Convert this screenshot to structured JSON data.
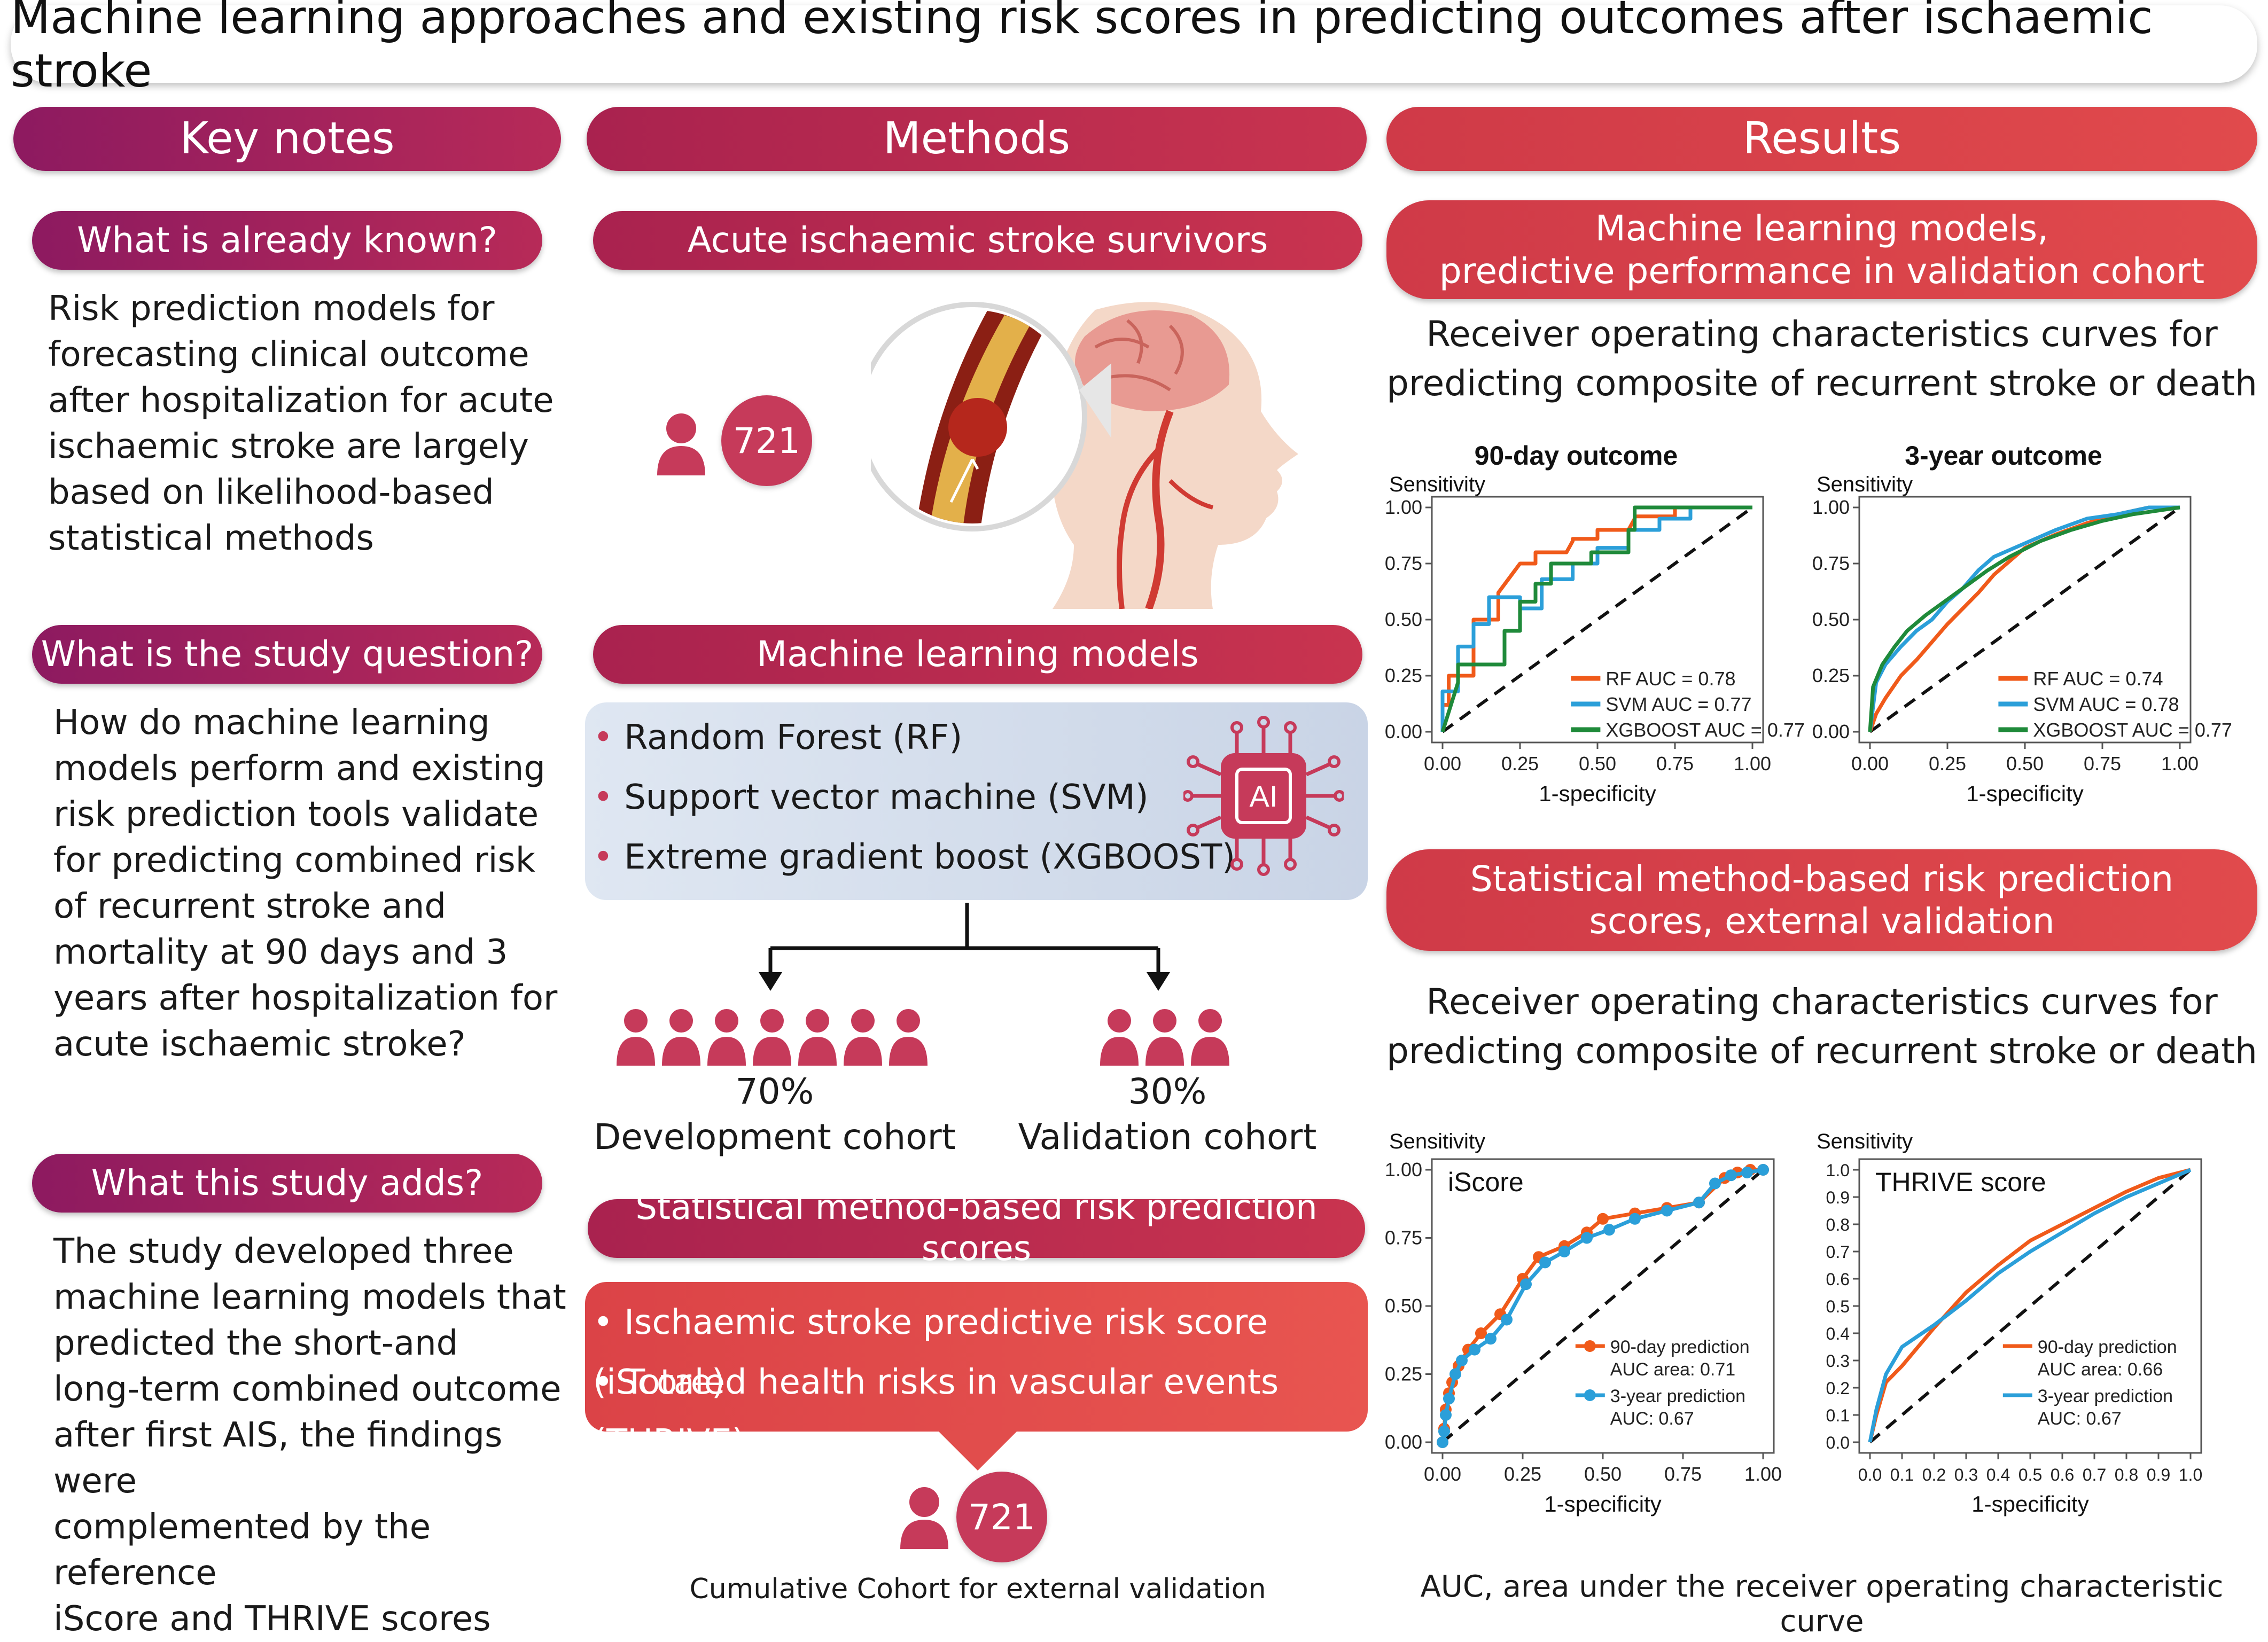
{
  "title": "Machine learning approaches and existing risk scores in predicting outcomes after ischaemic stroke",
  "columns": {
    "key_notes": "Key notes",
    "methods": "Methods",
    "results": "Results"
  },
  "key_notes": {
    "known_q": "What is already known?",
    "known_text": [
      "Risk prediction models for",
      "forecasting clinical outcome",
      "after hospitalization for acute",
      "ischaemic stroke are largely",
      "based on likelihood-based",
      "statistical methods"
    ],
    "question_q": "What is the study question?",
    "question_text": [
      "How do machine learning",
      "models perform and existing",
      "risk prediction tools validate",
      "for predicting combined risk",
      "of recurrent stroke and",
      "mortality at 90 days and 3",
      "years after hospitalization for",
      "acute ischaemic stroke?"
    ],
    "adds_q": "What this study adds?",
    "adds_text": [
      "The study developed three",
      "machine learning models that",
      "predicted the short-and",
      "long-term combined outcome",
      "after first AIS, the findings were",
      "complemented by the reference",
      "iScore and THRIVE scores"
    ]
  },
  "methods": {
    "survivors_label": "Acute ischaemic stroke survivors",
    "n_survivors": "721",
    "ml_label": "Machine learning models",
    "ml_items": [
      "Random Forest (RF)",
      "Support vector machine (SVM)",
      "Extreme gradient boost (XGBOOST)"
    ],
    "ai_chip": "AI",
    "dev_pct": "70%",
    "dev_label": "Development cohort",
    "val_pct": "30%",
    "val_label": "Validation cohort",
    "stat_label": "Statistical method-based risk prediction scores",
    "stat_items": [
      "Ischaemic stroke predictive risk score (iScore)",
      "Totaled health risks in vascular events (THRIVE)"
    ],
    "n_external": "721",
    "external_label": "Cumulative Cohort for external validation"
  },
  "results": {
    "ml_header": [
      "Machine learning models,",
      "predictive performance in validation cohort"
    ],
    "roc_caption_1": [
      "Receiver operating characteristics curves for",
      "predicting composite of recurrent stroke or death"
    ],
    "stat_header": [
      "Statistical method-based risk prediction",
      "scores, external validation"
    ],
    "roc_caption_2": [
      "Receiver operating characteristics curves for",
      "predicting composite of recurrent stroke or death"
    ],
    "footnote": "AUC, area under the receiver operating characteristic curve"
  },
  "colors": {
    "rf": "#f05a1a",
    "svm": "#2b9fd9",
    "xgb": "#1f8a3a",
    "orange": "#f05a1a",
    "blue": "#2b9fd9",
    "brand": "#c63a5a"
  },
  "chart_data": [
    {
      "type": "line",
      "title": "90-day outcome",
      "xlabel": "1-specificity",
      "ylabel": "Sensitivity",
      "xticks": [
        "0.00",
        "0.25",
        "0.50",
        "0.75",
        "1.00"
      ],
      "yticks": [
        "0.00",
        "0.25",
        "0.50",
        "0.75",
        "1.00"
      ],
      "xlim": [
        0,
        1
      ],
      "ylim": [
        0,
        1
      ],
      "legend_position": "bottom-right",
      "series": [
        {
          "name": "RF AUC = 0.78",
          "color": "#f05a1a",
          "x": [
            0,
            0,
            0.02,
            0.02,
            0.1,
            0.1,
            0.18,
            0.18,
            0.25,
            0.3,
            0.3,
            0.4,
            0.42,
            0.42,
            0.5,
            0.5,
            0.6,
            0.62,
            0.62,
            0.75,
            0.75,
            0.88,
            1.0
          ],
          "y": [
            0,
            0.12,
            0.12,
            0.25,
            0.25,
            0.5,
            0.5,
            0.62,
            0.75,
            0.75,
            0.8,
            0.8,
            0.85,
            0.86,
            0.86,
            0.9,
            0.9,
            0.95,
            0.96,
            0.96,
            1.0,
            1.0,
            1.0
          ]
        },
        {
          "name": "SVM AUC = 0.77",
          "color": "#2b9fd9",
          "x": [
            0,
            0,
            0.05,
            0.05,
            0.1,
            0.1,
            0.15,
            0.15,
            0.25,
            0.25,
            0.32,
            0.32,
            0.42,
            0.42,
            0.5,
            0.5,
            0.6,
            0.6,
            0.7,
            0.7,
            0.8,
            0.8,
            1.0
          ],
          "y": [
            0,
            0.18,
            0.18,
            0.38,
            0.38,
            0.48,
            0.48,
            0.6,
            0.6,
            0.55,
            0.55,
            0.68,
            0.68,
            0.75,
            0.75,
            0.82,
            0.82,
            0.9,
            0.9,
            0.95,
            0.95,
            1.0,
            1.0
          ]
        },
        {
          "name": "XGBOOST AUC = 0.77",
          "color": "#1f8a3a",
          "x": [
            0,
            0.05,
            0.05,
            0.2,
            0.2,
            0.25,
            0.25,
            0.3,
            0.3,
            0.35,
            0.35,
            0.48,
            0.48,
            0.6,
            0.6,
            0.62,
            0.62,
            0.82,
            0.82,
            1.0
          ],
          "y": [
            0,
            0.22,
            0.3,
            0.3,
            0.45,
            0.45,
            0.58,
            0.58,
            0.66,
            0.66,
            0.75,
            0.75,
            0.8,
            0.8,
            0.9,
            0.9,
            1.0,
            1.0,
            1.0,
            1.0
          ]
        }
      ]
    },
    {
      "type": "line",
      "title": "3-year outcome",
      "xlabel": "1-specificity",
      "ylabel": "Sensitivity",
      "xticks": [
        "0.00",
        "0.25",
        "0.50",
        "0.75",
        "1.00"
      ],
      "yticks": [
        "0.00",
        "0.25",
        "0.50",
        "0.75",
        "1.00"
      ],
      "xlim": [
        0,
        1
      ],
      "ylim": [
        0,
        1
      ],
      "legend_position": "bottom-right",
      "series": [
        {
          "name": "RF AUC = 0.74",
          "color": "#f05a1a",
          "x": [
            0,
            0.02,
            0.05,
            0.1,
            0.15,
            0.2,
            0.25,
            0.3,
            0.35,
            0.4,
            0.45,
            0.5,
            0.6,
            0.7,
            0.8,
            0.9,
            1.0
          ],
          "y": [
            0,
            0.08,
            0.15,
            0.25,
            0.32,
            0.4,
            0.48,
            0.55,
            0.62,
            0.7,
            0.76,
            0.82,
            0.88,
            0.93,
            0.97,
            1.0,
            1.0
          ]
        },
        {
          "name": "SVM AUC = 0.78",
          "color": "#2b9fd9",
          "x": [
            0,
            0.02,
            0.05,
            0.1,
            0.15,
            0.2,
            0.25,
            0.3,
            0.35,
            0.4,
            0.5,
            0.6,
            0.7,
            0.8,
            0.9,
            1.0
          ],
          "y": [
            0,
            0.22,
            0.3,
            0.38,
            0.45,
            0.5,
            0.58,
            0.64,
            0.72,
            0.78,
            0.84,
            0.9,
            0.95,
            0.97,
            1.0,
            1.0
          ]
        },
        {
          "name": "XGBOOST AUC = 0.77",
          "color": "#1f8a3a",
          "x": [
            0,
            0.01,
            0.04,
            0.08,
            0.12,
            0.18,
            0.24,
            0.3,
            0.38,
            0.45,
            0.55,
            0.65,
            0.75,
            0.85,
            0.95,
            1.0
          ],
          "y": [
            0,
            0.2,
            0.3,
            0.38,
            0.45,
            0.52,
            0.58,
            0.64,
            0.72,
            0.78,
            0.85,
            0.9,
            0.94,
            0.97,
            0.99,
            1.0
          ]
        }
      ]
    },
    {
      "type": "line",
      "title": "iScore",
      "xlabel": "1-specificity",
      "ylabel": "Sensitivity",
      "xticks": [
        "0.00",
        "0.25",
        "0.50",
        "0.75",
        "1.00"
      ],
      "yticks": [
        "0.00",
        "0.25",
        "0.50",
        "0.75",
        "1.00"
      ],
      "xlim": [
        0,
        1
      ],
      "ylim": [
        0,
        1
      ],
      "legend_position": "bottom-right",
      "series": [
        {
          "name": "90-day prediction",
          "sublabel": "AUC area: 0.71",
          "color": "#f05a1a",
          "x": [
            0,
            0.005,
            0.01,
            0.02,
            0.03,
            0.05,
            0.08,
            0.12,
            0.18,
            0.25,
            0.3,
            0.38,
            0.45,
            0.5,
            0.6,
            0.7,
            0.8,
            0.88,
            0.92,
            0.96,
            1.0
          ],
          "y": [
            0,
            0.05,
            0.12,
            0.18,
            0.22,
            0.28,
            0.34,
            0.4,
            0.47,
            0.6,
            0.68,
            0.72,
            0.77,
            0.82,
            0.84,
            0.86,
            0.88,
            0.97,
            0.99,
            1.0,
            1.0
          ]
        },
        {
          "name": "3-year prediction",
          "sublabel": "AUC: 0.67",
          "color": "#2b9fd9",
          "x": [
            0,
            0.005,
            0.01,
            0.02,
            0.04,
            0.06,
            0.1,
            0.15,
            0.2,
            0.26,
            0.32,
            0.38,
            0.45,
            0.52,
            0.6,
            0.7,
            0.8,
            0.85,
            0.9,
            0.95,
            1.0
          ],
          "y": [
            0,
            0.04,
            0.1,
            0.16,
            0.25,
            0.3,
            0.34,
            0.38,
            0.45,
            0.58,
            0.66,
            0.7,
            0.75,
            0.78,
            0.82,
            0.85,
            0.88,
            0.95,
            0.98,
            0.99,
            1.0
          ]
        }
      ]
    },
    {
      "type": "line",
      "title": "THRIVE score",
      "xlabel": "1-specificity",
      "ylabel": "Sensitivity",
      "xticks": [
        "0.0",
        "0.1",
        "0.2",
        "0.3",
        "0.4",
        "0.5",
        "0.6",
        "0.7",
        "0.8",
        "0.9",
        "1.0"
      ],
      "yticks": [
        "0.0",
        "0.1",
        "0.2",
        "0.3",
        "0.4",
        "0.5",
        "0.6",
        "0.7",
        "0.8",
        "0.9",
        "1.0"
      ],
      "xlim": [
        0,
        1
      ],
      "ylim": [
        0,
        1
      ],
      "legend_position": "bottom-right",
      "series": [
        {
          "name": "90-day prediction",
          "sublabel": "AUC area: 0.66",
          "color": "#f05a1a",
          "x": [
            0,
            0.02,
            0.05,
            0.1,
            0.2,
            0.3,
            0.4,
            0.5,
            0.6,
            0.7,
            0.8,
            0.9,
            1.0
          ],
          "y": [
            0,
            0.1,
            0.22,
            0.28,
            0.42,
            0.55,
            0.65,
            0.74,
            0.8,
            0.86,
            0.92,
            0.97,
            1.0
          ]
        },
        {
          "name": "3-year prediction",
          "sublabel": "AUC: 0.67",
          "color": "#2b9fd9",
          "x": [
            0,
            0.02,
            0.05,
            0.1,
            0.2,
            0.3,
            0.4,
            0.5,
            0.6,
            0.7,
            0.8,
            0.9,
            1.0
          ],
          "y": [
            0,
            0.12,
            0.25,
            0.35,
            0.43,
            0.52,
            0.62,
            0.7,
            0.77,
            0.84,
            0.9,
            0.95,
            1.0
          ]
        }
      ]
    }
  ]
}
